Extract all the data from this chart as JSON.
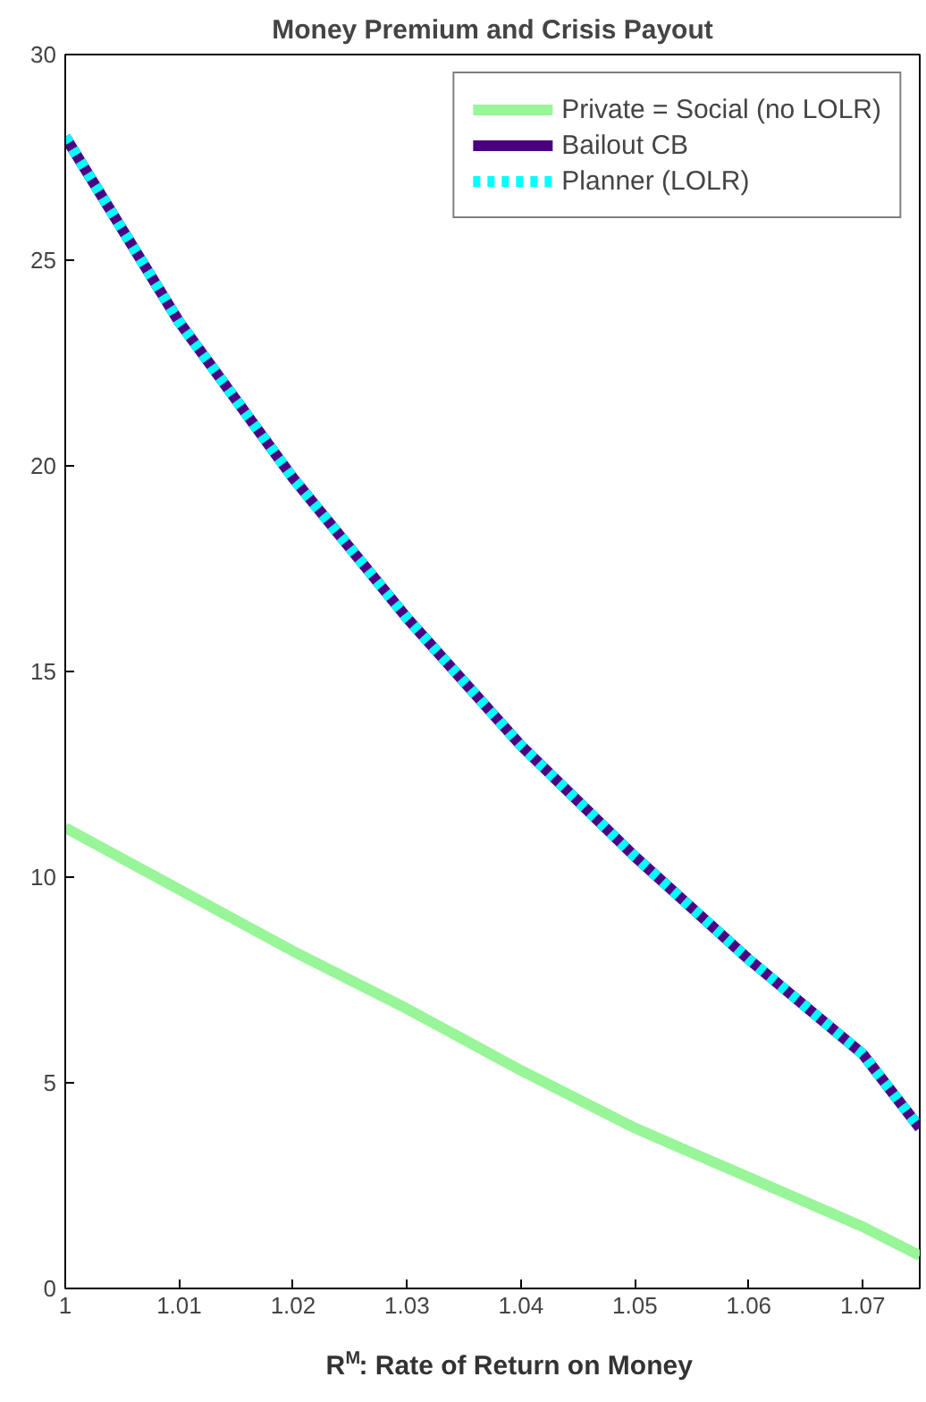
{
  "chart_data": {
    "type": "line",
    "title": "Money Premium and Crisis Payout",
    "xlabel": "R$^{M}$: Rate of Return on Money",
    "x": [
      1,
      1.01,
      1.02,
      1.03,
      1.04,
      1.05,
      1.06,
      1.07,
      1.075
    ],
    "series": [
      {
        "name": "Private = Social (no LOLR)",
        "color": "#98f598",
        "values": [
          11.2,
          9.7,
          8.2,
          6.8,
          5.3,
          3.9,
          2.7,
          1.5,
          0.8
        ]
      },
      {
        "name": "Bailout CB",
        "color": "#4b0082",
        "values": [
          28,
          23.5,
          19.7,
          16.3,
          13.2,
          10.5,
          8,
          5.7,
          3.9
        ]
      },
      {
        "name": "Planner (LOLR)",
        "color": "#00ffff",
        "line_style": "dashed",
        "values": [
          28,
          23.5,
          19.7,
          16.3,
          13.2,
          10.5,
          8,
          5.7,
          3.9
        ]
      }
    ],
    "xlim": [
      1,
      1.075
    ],
    "ylim": [
      0,
      30
    ],
    "xticks": [
      1,
      1.01,
      1.02,
      1.03,
      1.04,
      1.05,
      1.06,
      1.07
    ],
    "yticks": [
      0,
      5,
      10,
      15,
      20,
      25,
      30
    ],
    "grid": false,
    "legend": "top right",
    "line_style": "solid"
  }
}
